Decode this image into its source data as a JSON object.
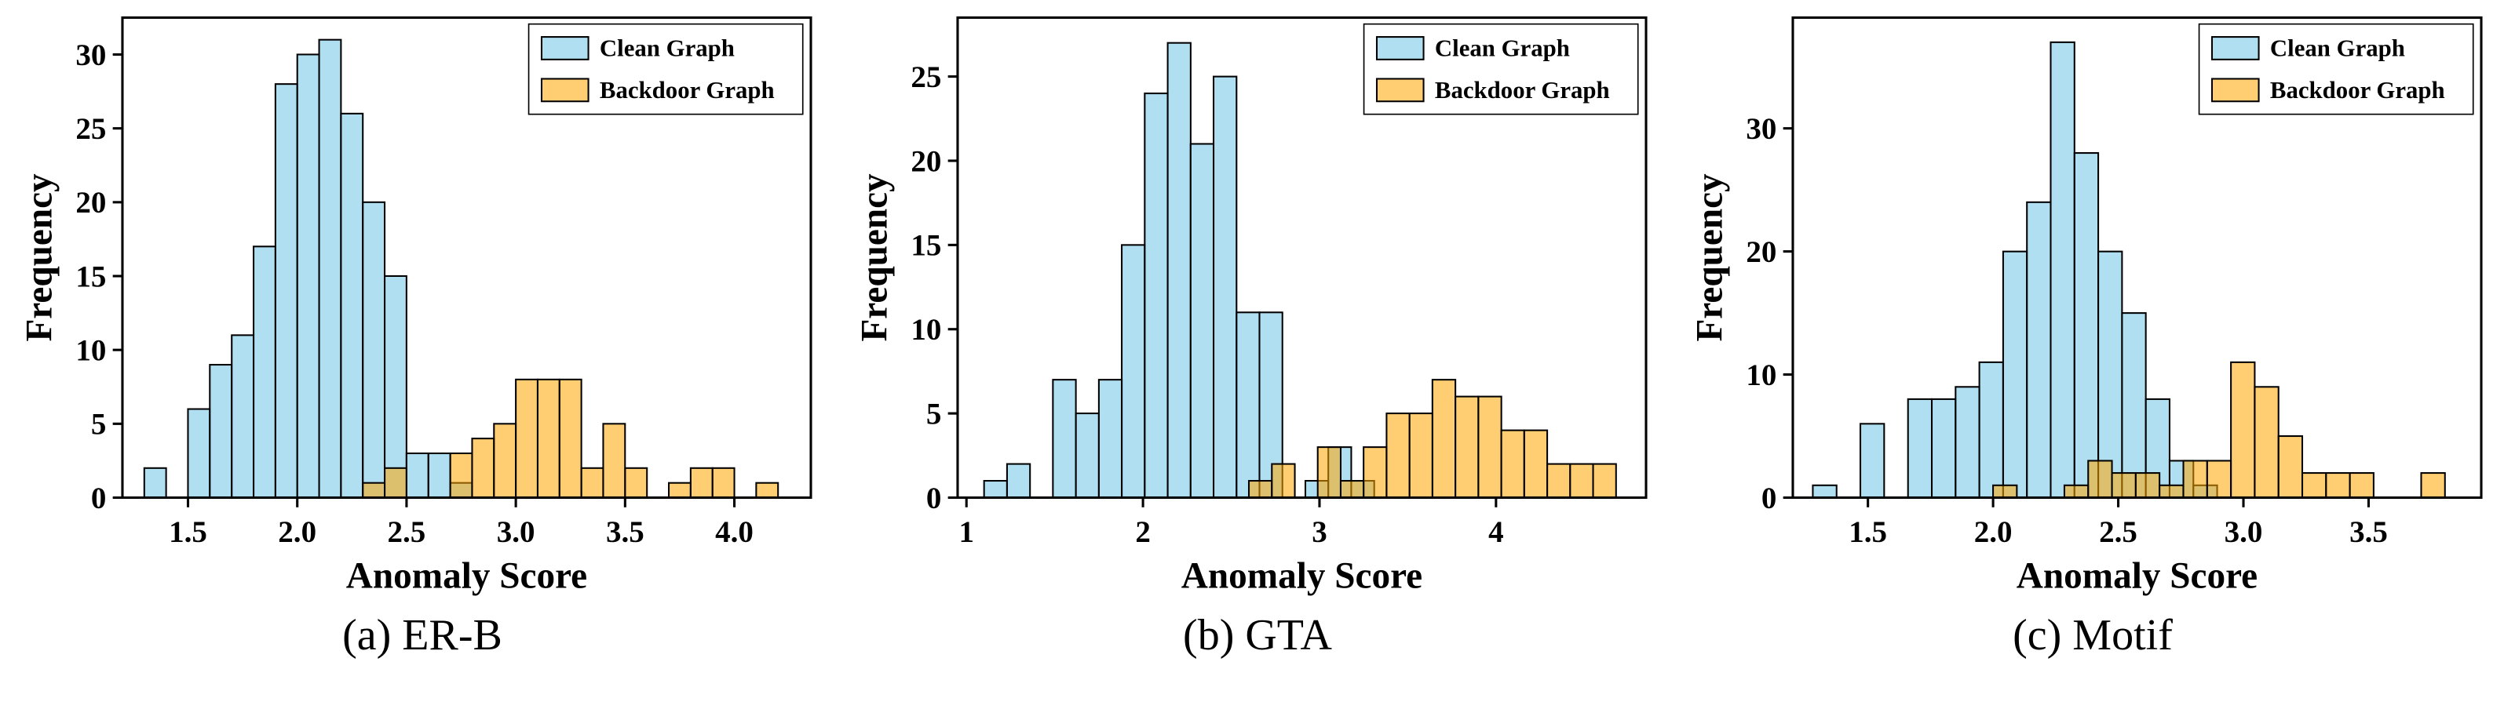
{
  "page": {
    "background": "#ffffff"
  },
  "legend": {
    "clean_label": "Clean Graph",
    "backdoor_label": "Backdoor Graph"
  },
  "colors": {
    "clean_fill": "#87CEEB",
    "backdoor_fill": "#FFA500",
    "bar_edge": "#000000",
    "axis": "#000000",
    "text": "#000000"
  },
  "chart_data": [
    {
      "type": "bar",
      "subtype": "histogram",
      "caption": "(a) ER-B",
      "title": "",
      "xlabel": "Anomaly Score",
      "ylabel": "Frequency",
      "xlim": [
        1.2,
        4.35
      ],
      "ylim": [
        0,
        32.5
      ],
      "xticks": [
        1.5,
        2.0,
        2.5,
        3.0,
        3.5,
        4.0
      ],
      "xtick_labels": [
        "1.5",
        "2.0",
        "2.5",
        "3.0",
        "3.5",
        "4.0"
      ],
      "yticks": [
        0,
        5,
        10,
        15,
        20,
        25,
        30
      ],
      "ytick_labels": [
        "0",
        "5",
        "10",
        "15",
        "20",
        "25",
        "30"
      ],
      "grid": false,
      "legend_position": "upper right",
      "series": [
        {
          "name": "Clean Graph",
          "color": "#87CEEB",
          "opacity": 0.65,
          "bin_start": 1.3,
          "bin_width": 0.1,
          "heights": [
            2,
            0,
            6,
            9,
            11,
            17,
            28,
            30,
            31,
            26,
            20,
            15,
            3,
            3,
            1
          ]
        },
        {
          "name": "Backdoor Graph",
          "color": "#FFA500",
          "opacity": 0.55,
          "bin_start": 2.3,
          "bin_width": 0.1,
          "heights": [
            1,
            2,
            0,
            0,
            3,
            4,
            5,
            8,
            8,
            8,
            2,
            5,
            2,
            0,
            1,
            2,
            2,
            0,
            1
          ]
        }
      ]
    },
    {
      "type": "bar",
      "subtype": "histogram",
      "caption": "(b) GTA",
      "title": "",
      "xlabel": "Anomaly Score",
      "ylabel": "Frequency",
      "xlim": [
        0.95,
        4.85
      ],
      "ylim": [
        0,
        28.5
      ],
      "xticks": [
        1,
        2,
        3,
        4
      ],
      "xtick_labels": [
        "1",
        "2",
        "3",
        "4"
      ],
      "yticks": [
        0,
        5,
        10,
        15,
        20,
        25
      ],
      "ytick_labels": [
        "0",
        "5",
        "10",
        "15",
        "20",
        "25"
      ],
      "grid": false,
      "legend_position": "upper right",
      "series": [
        {
          "name": "Clean Graph",
          "color": "#87CEEB",
          "opacity": 0.65,
          "bin_start": 1.1,
          "bin_width": 0.13,
          "heights": [
            1,
            2,
            0,
            7,
            5,
            7,
            15,
            24,
            27,
            21,
            25,
            11,
            11,
            0,
            1,
            3,
            1
          ]
        },
        {
          "name": "Backdoor Graph",
          "color": "#FFA500",
          "opacity": 0.55,
          "bin_start": 2.6,
          "bin_width": 0.13,
          "heights": [
            1,
            2,
            0,
            3,
            1,
            3,
            5,
            5,
            7,
            6,
            6,
            4,
            4,
            2,
            2,
            2
          ]
        }
      ]
    },
    {
      "type": "bar",
      "subtype": "histogram",
      "caption": "(c) Motif",
      "title": "",
      "xlabel": "Anomaly Score",
      "ylabel": "Frequency",
      "xlim": [
        1.2,
        3.95
      ],
      "ylim": [
        0,
        39
      ],
      "xticks": [
        1.5,
        2.0,
        2.5,
        3.0,
        3.5
      ],
      "xtick_labels": [
        "1.5",
        "2.0",
        "2.5",
        "3.0",
        "3.5"
      ],
      "yticks": [
        0,
        10,
        20,
        30
      ],
      "ytick_labels": [
        "0",
        "10",
        "20",
        "30"
      ],
      "grid": false,
      "legend_position": "upper right",
      "series": [
        {
          "name": "Clean Graph",
          "color": "#87CEEB",
          "opacity": 0.65,
          "bin_start": 1.28,
          "bin_width": 0.095,
          "heights": [
            1,
            0,
            6,
            0,
            8,
            8,
            9,
            11,
            20,
            24,
            37,
            28,
            20,
            15,
            8,
            3,
            1
          ]
        },
        {
          "name": "Backdoor Graph",
          "color": "#FFA500",
          "opacity": 0.55,
          "bin_start": 2.0,
          "bin_width": 0.095,
          "heights": [
            1,
            0,
            0,
            1,
            3,
            2,
            2,
            1,
            3,
            3,
            11,
            9,
            5,
            2,
            2,
            2,
            0,
            0,
            2
          ]
        }
      ]
    }
  ]
}
